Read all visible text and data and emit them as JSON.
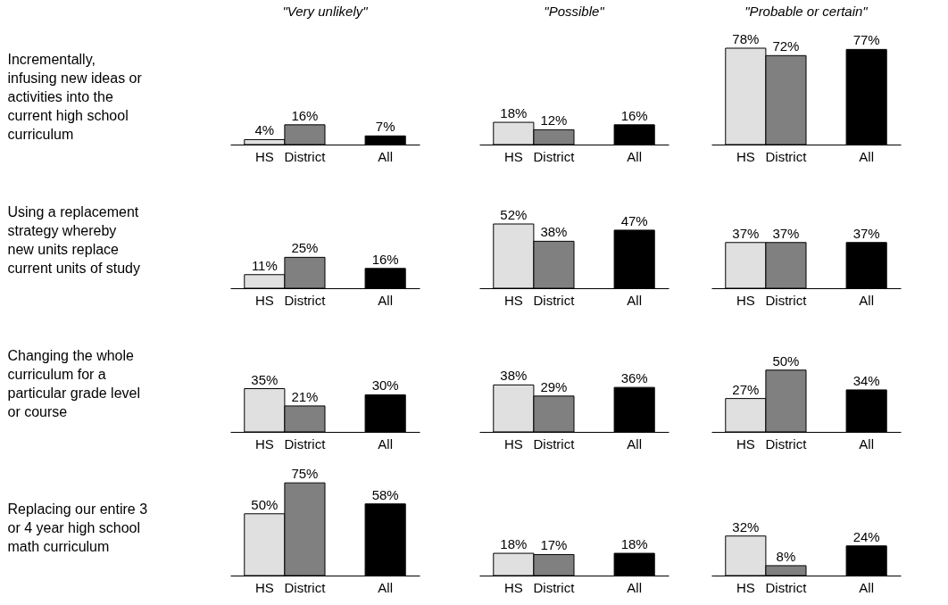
{
  "chart_data": [
    {
      "type": "bar",
      "title": "\"Very unlikely\"",
      "ylabel": "Incrementally,\ninfusing new ideas or\nactivities into the\ncurrent high school\ncurriculum",
      "categories": [
        "HS",
        "District",
        null,
        "All"
      ],
      "values": [
        4,
        16,
        null,
        7
      ],
      "colors": [
        "#e0e0e0",
        "#808080",
        null,
        "#000000"
      ],
      "value_labels": [
        "4%",
        "16%",
        null,
        "7%"
      ]
    },
    {
      "type": "bar",
      "title": "\"Possible\"",
      "categories": [
        "HS",
        "District",
        null,
        "All"
      ],
      "values": [
        18,
        12,
        null,
        16
      ],
      "colors": [
        "#e0e0e0",
        "#808080",
        null,
        "#000000"
      ],
      "value_labels": [
        "18%",
        "12%",
        null,
        "16%"
      ]
    },
    {
      "type": "bar",
      "title": "\"Probable or certain\"",
      "categories": [
        "HS",
        "District",
        null,
        "All"
      ],
      "values": [
        78,
        72,
        null,
        77
      ],
      "colors": [
        "#e0e0e0",
        "#808080",
        null,
        "#000000"
      ],
      "value_labels": [
        "78%",
        "72%",
        null,
        "77%"
      ]
    },
    {
      "type": "bar",
      "ylabel": "Using a replacement\nstrategy whereby\nnew units replace\ncurrent units of study",
      "categories": [
        "HS",
        "District",
        null,
        "All"
      ],
      "values": [
        11,
        25,
        null,
        16
      ],
      "colors": [
        "#e0e0e0",
        "#808080",
        null,
        "#000000"
      ],
      "value_labels": [
        "11%",
        "25%",
        null,
        "16%"
      ]
    },
    {
      "type": "bar",
      "categories": [
        "HS",
        "District",
        null,
        "All"
      ],
      "values": [
        52,
        38,
        null,
        47
      ],
      "colors": [
        "#e0e0e0",
        "#808080",
        null,
        "#000000"
      ],
      "value_labels": [
        "52%",
        "38%",
        null,
        "47%"
      ]
    },
    {
      "type": "bar",
      "categories": [
        "HS",
        "District",
        null,
        "All"
      ],
      "values": [
        37,
        37,
        null,
        37
      ],
      "colors": [
        "#e0e0e0",
        "#808080",
        null,
        "#000000"
      ],
      "value_labels": [
        "37%",
        "37%",
        null,
        "37%"
      ]
    },
    {
      "type": "bar",
      "ylabel": "Changing the whole\ncurriculum for a\nparticular grade level\nor course",
      "categories": [
        "HS",
        "District",
        null,
        "All"
      ],
      "values": [
        35,
        21,
        null,
        30
      ],
      "colors": [
        "#e0e0e0",
        "#808080",
        null,
        "#000000"
      ],
      "value_labels": [
        "35%",
        "21%",
        null,
        "30%"
      ]
    },
    {
      "type": "bar",
      "categories": [
        "HS",
        "District",
        null,
        "All"
      ],
      "values": [
        38,
        29,
        null,
        36
      ],
      "colors": [
        "#e0e0e0",
        "#808080",
        null,
        "#000000"
      ],
      "value_labels": [
        "38%",
        "29%",
        null,
        "36%"
      ]
    },
    {
      "type": "bar",
      "categories": [
        "HS",
        "District",
        null,
        "All"
      ],
      "values": [
        27,
        50,
        null,
        34
      ],
      "colors": [
        "#e0e0e0",
        "#808080",
        null,
        "#000000"
      ],
      "value_labels": [
        "27%",
        "50%",
        null,
        "34%"
      ]
    },
    {
      "type": "bar",
      "ylabel": "Replacing our entire 3\nor 4 year high school\nmath curriculum",
      "categories": [
        "HS",
        "District",
        null,
        "All"
      ],
      "values": [
        50,
        75,
        null,
        58
      ],
      "colors": [
        "#e0e0e0",
        "#808080",
        null,
        "#000000"
      ],
      "value_labels": [
        "50%",
        "75%",
        null,
        "58%"
      ]
    },
    {
      "type": "bar",
      "categories": [
        "HS",
        "District",
        null,
        "All"
      ],
      "values": [
        18,
        17,
        null,
        18
      ],
      "colors": [
        "#e0e0e0",
        "#808080",
        null,
        "#000000"
      ],
      "value_labels": [
        "18%",
        "17%",
        null,
        "18%"
      ]
    },
    {
      "type": "bar",
      "categories": [
        "HS",
        "District",
        null,
        "All"
      ],
      "values": [
        32,
        8,
        null,
        24
      ],
      "colors": [
        "#e0e0e0",
        "#808080",
        null,
        "#000000"
      ],
      "value_labels": [
        "32%",
        "8%",
        null,
        "24%"
      ]
    }
  ]
}
